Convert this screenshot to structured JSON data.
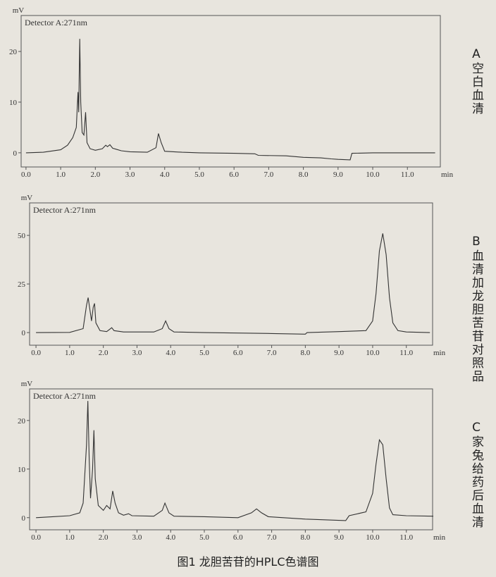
{
  "caption": "图1 龙胆苦苷的HPLC色谱图",
  "chart_data": [
    {
      "type": "line",
      "panel_label": "A",
      "panel_title": "空白血清",
      "annotation": "Detector A:271nm",
      "y_label": "mV",
      "x_label": "min",
      "color": "#333333",
      "x": [
        0,
        0.5,
        1.0,
        1.2,
        1.35,
        1.45,
        1.5,
        1.52,
        1.55,
        1.58,
        1.62,
        1.67,
        1.72,
        1.76,
        1.85,
        2.0,
        2.2,
        2.3,
        2.35,
        2.42,
        2.5,
        2.6,
        2.75,
        3.0,
        3.5,
        3.75,
        3.82,
        3.9,
        4.0,
        4.5,
        5,
        6,
        6.6,
        6.7,
        7.5,
        8.0,
        8.5,
        8.8,
        9.0,
        9.35,
        9.4,
        10,
        11,
        11.8
      ],
      "values": [
        0,
        0.1,
        0.6,
        1.5,
        3,
        5,
        12,
        8,
        22.5,
        10,
        4,
        3.5,
        8,
        2,
        0.8,
        0.5,
        0.8,
        1.5,
        1.2,
        1.6,
        0.9,
        0.7,
        0.4,
        0.2,
        0.1,
        1,
        3.8,
        2,
        0.3,
        0.1,
        0,
        -0.1,
        -0.2,
        -0.5,
        -0.6,
        -0.9,
        -1.0,
        -1.2,
        -1.3,
        -1.4,
        -0.1,
        0,
        0,
        0
      ],
      "xlim": [
        -0.14,
        11.95
      ],
      "ylim": [
        -2.8,
        27.1
      ],
      "xticks": [
        {
          "value": 0,
          "label": "0.0"
        },
        {
          "value": 1,
          "label": "1.0"
        },
        {
          "value": 2,
          "label": "2.0"
        },
        {
          "value": 3,
          "label": "3.0"
        },
        {
          "value": 4,
          "label": "4.0"
        },
        {
          "value": 5,
          "label": "5.0"
        },
        {
          "value": 6,
          "label": "6.0"
        },
        {
          "value": 7,
          "label": "7.0"
        },
        {
          "value": 8,
          "label": "8.0"
        },
        {
          "value": 9,
          "label": "9.0"
        },
        {
          "value": 10,
          "label": "10.0"
        },
        {
          "value": 11,
          "label": "11.0"
        }
      ],
      "yticks": [
        0,
        10,
        20
      ]
    },
    {
      "type": "line",
      "panel_label": "B",
      "panel_title": "血清加龙胆苦苷对照品",
      "annotation": "Detector A:271nm",
      "y_label": "mV",
      "x_label": "min",
      "color": "#333333",
      "x": [
        0,
        1,
        1.4,
        1.5,
        1.55,
        1.6,
        1.65,
        1.7,
        1.74,
        1.78,
        1.9,
        2.1,
        2.25,
        2.32,
        2.6,
        3.5,
        3.75,
        3.85,
        3.95,
        4.1,
        5,
        7,
        8,
        8.05,
        9,
        9.8,
        10.0,
        10.1,
        10.2,
        10.3,
        10.4,
        10.5,
        10.6,
        10.75,
        11.0,
        11.7
      ],
      "values": [
        0,
        0.1,
        2,
        14,
        18,
        12,
        6,
        13,
        15,
        5,
        1,
        0.5,
        2.5,
        1,
        0.3,
        0.3,
        2,
        6,
        2,
        0.3,
        0,
        -0.5,
        -0.8,
        0,
        0.5,
        1,
        6,
        20,
        42,
        51,
        40,
        18,
        5,
        1,
        0.3,
        0
      ],
      "xlim": [
        -0.19,
        11.78
      ],
      "ylim": [
        -6.5,
        66.7
      ],
      "xticks": [
        {
          "value": 0,
          "label": "0.0"
        },
        {
          "value": 1,
          "label": "1.0"
        },
        {
          "value": 2,
          "label": "2.0"
        },
        {
          "value": 3,
          "label": "3.0"
        },
        {
          "value": 4,
          "label": "4.0"
        },
        {
          "value": 5,
          "label": "5.0"
        },
        {
          "value": 6,
          "label": "6.0"
        },
        {
          "value": 7,
          "label": "7.0"
        },
        {
          "value": 8,
          "label": "8.0"
        },
        {
          "value": 9,
          "label": "9.0"
        },
        {
          "value": 10,
          "label": "10.0"
        },
        {
          "value": 11,
          "label": "11.0"
        }
      ],
      "yticks": [
        0,
        25,
        50
      ]
    },
    {
      "type": "line",
      "panel_label": "C",
      "panel_title": "家兔给药后血清",
      "annotation": "Detector A:271nm",
      "y_label": "mV",
      "x_label": "min",
      "color": "#333333",
      "x": [
        0,
        0.5,
        1.0,
        1.3,
        1.4,
        1.5,
        1.54,
        1.58,
        1.62,
        1.68,
        1.72,
        1.76,
        1.85,
        2.0,
        2.1,
        2.2,
        2.28,
        2.35,
        2.45,
        2.6,
        2.75,
        2.85,
        3.5,
        3.75,
        3.83,
        3.95,
        4.1,
        5,
        6,
        6.4,
        6.55,
        6.7,
        6.9,
        8,
        9.2,
        9.3,
        9.8,
        10.0,
        10.1,
        10.2,
        10.3,
        10.4,
        10.5,
        10.6,
        11,
        11.8
      ],
      "values": [
        0,
        0.2,
        0.4,
        1,
        3,
        15,
        24,
        12,
        4,
        10,
        18,
        8,
        2.5,
        1.5,
        2.5,
        1.8,
        5.5,
        3,
        1,
        0.5,
        0.8,
        0.4,
        0.3,
        1.5,
        3,
        1,
        0.3,
        0.2,
        0,
        1,
        1.8,
        1,
        0.2,
        -0.3,
        -0.6,
        0.4,
        1.2,
        5,
        11,
        16,
        15,
        8,
        2,
        0.6,
        0.4,
        0.3
      ],
      "xlim": [
        -0.19,
        11.78
      ],
      "ylim": [
        -2.5,
        26.5
      ],
      "xticks": [
        {
          "value": 0,
          "label": "0.0"
        },
        {
          "value": 1,
          "label": "1.0"
        },
        {
          "value": 2,
          "label": "2.0"
        },
        {
          "value": 3,
          "label": "3.0"
        },
        {
          "value": 4,
          "label": "4.0"
        },
        {
          "value": 5,
          "label": "5.0"
        },
        {
          "value": 6,
          "label": "6.0"
        },
        {
          "value": 7,
          "label": "7.0"
        },
        {
          "value": 8,
          "label": "8.0"
        },
        {
          "value": 9,
          "label": "9.0"
        },
        {
          "value": 10,
          "label": "10.0"
        },
        {
          "value": 11,
          "label": "11.0"
        }
      ],
      "yticks": [
        0,
        10,
        20
      ]
    }
  ]
}
